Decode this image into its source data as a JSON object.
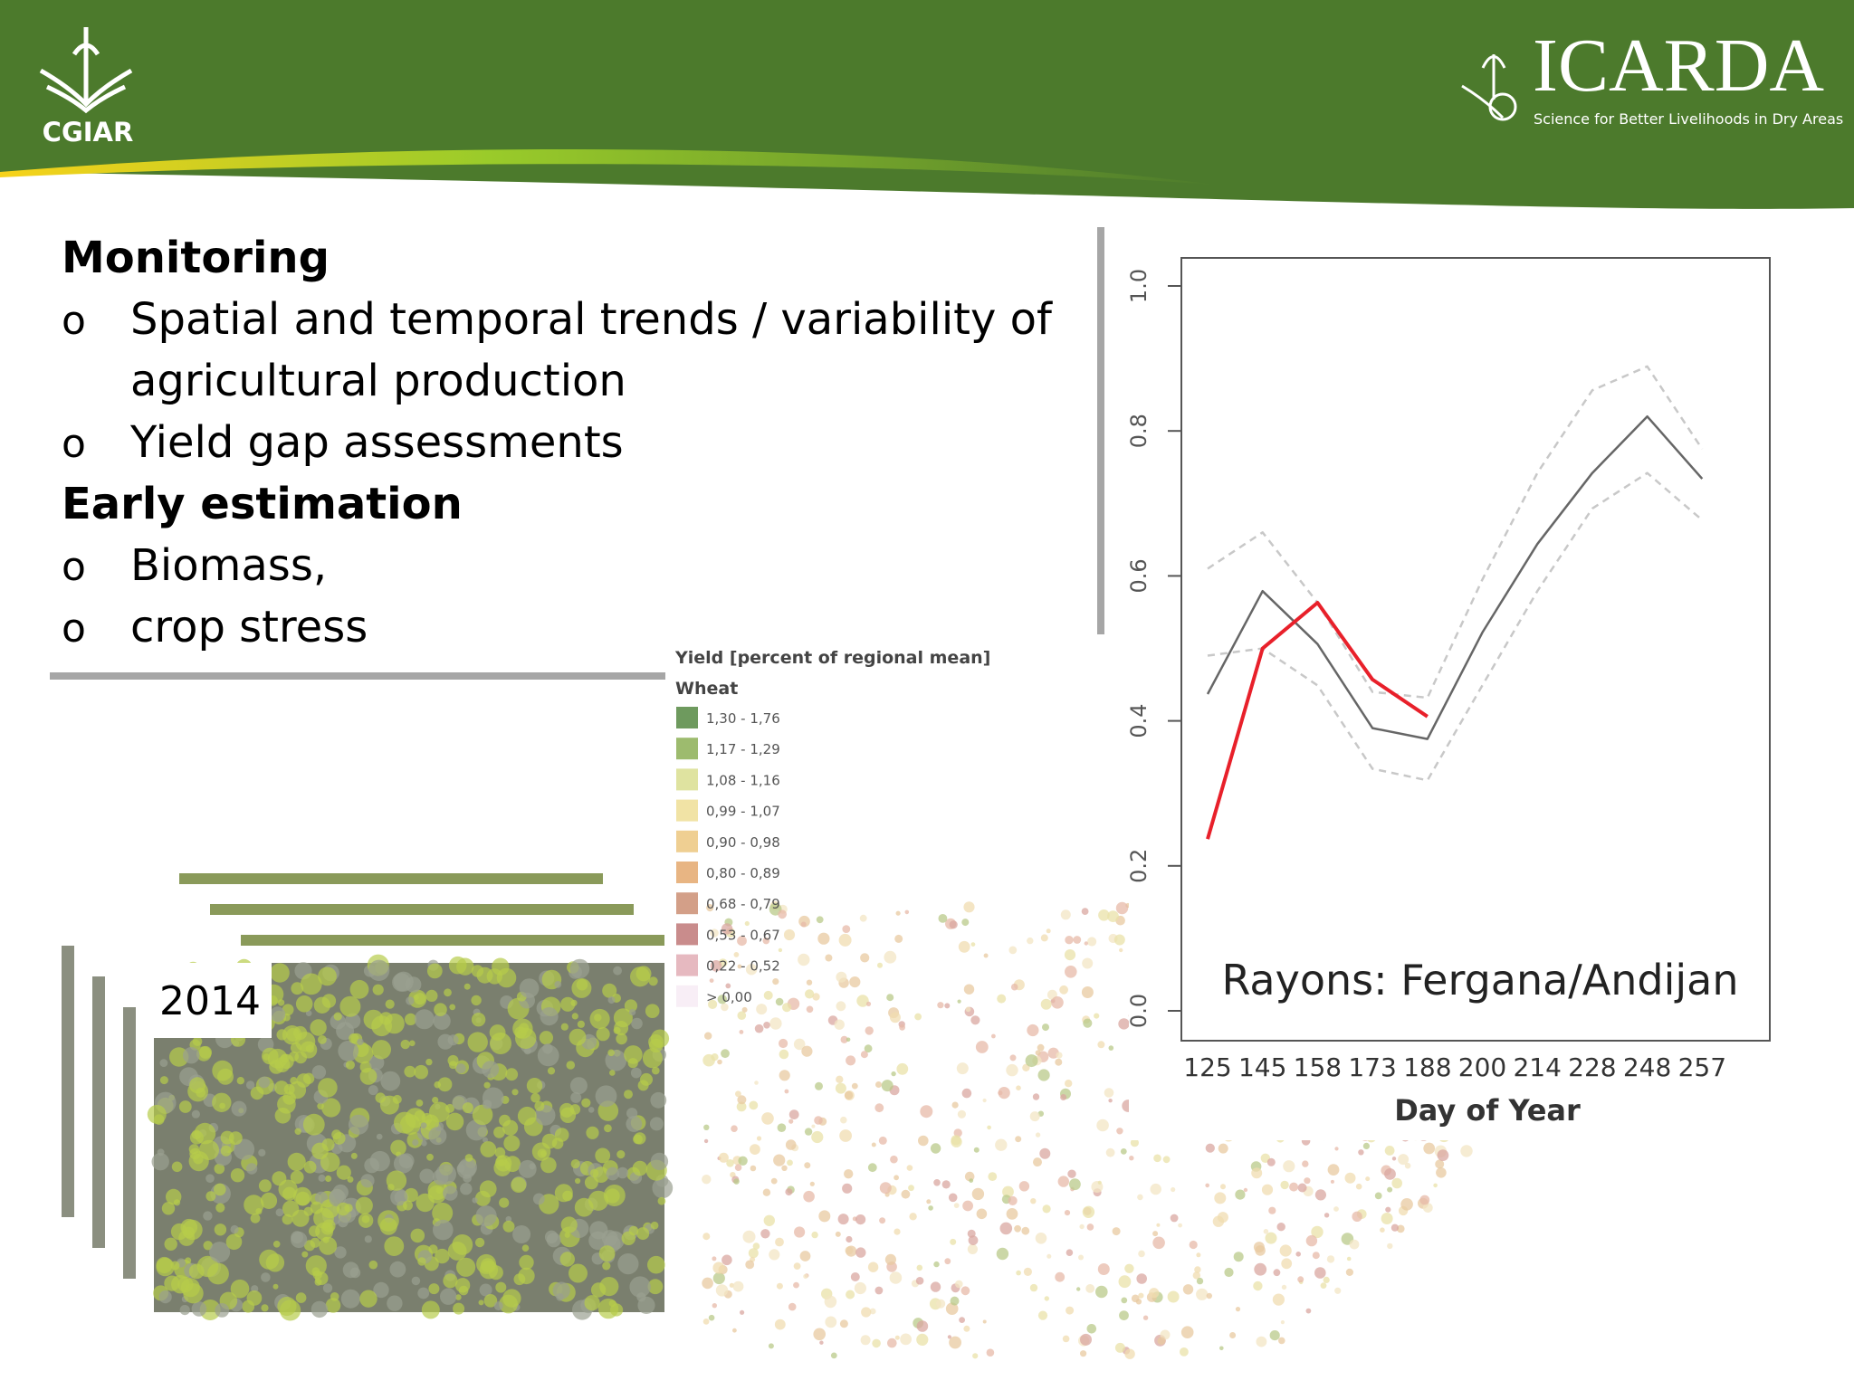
{
  "header": {
    "left_logo": "CGIAR",
    "right_logo": "ICARDA",
    "right_tagline": "Science for Better Livelihoods in Dry Areas"
  },
  "sections": [
    {
      "heading": "Monitoring",
      "items": [
        "Spatial and temporal trends / variability of",
        "agricultural production",
        "Yield gap assessments"
      ]
    },
    {
      "heading": "Early estimation",
      "items": [
        "Biomass,",
        "crop stress"
      ]
    }
  ],
  "bullet": "o",
  "map_legend": {
    "title": "Yield [percent of regional mean]",
    "subtitle": "Wheat",
    "entries": [
      {
        "label": "1,30 - 1,76",
        "color": "#6e9a5e"
      },
      {
        "label": "1,17 - 1,29",
        "color": "#9dbb6e"
      },
      {
        "label": "1,08 - 1,16",
        "color": "#dfe3a0"
      },
      {
        "label": "0,99 - 1,07",
        "color": "#f1e3a5"
      },
      {
        "label": "0,90 - 0,98",
        "color": "#efcf92"
      },
      {
        "label": "0,80 - 0,89",
        "color": "#e8b583"
      },
      {
        "label": "0,68 - 0,79",
        "color": "#d39f88"
      },
      {
        "label": "0,53 - 0,67",
        "color": "#c98c8c"
      },
      {
        "label": "0,22 - 0,52",
        "color": "#e6b9c0"
      },
      {
        "label": "> 0,00",
        "color": "#f8eef6"
      }
    ]
  },
  "image_label": "2014",
  "chart": {
    "type": "line",
    "annotation": "Rayons: Fergana/Andijan",
    "x_label": "Day of Year",
    "categories": [
      "125",
      "145",
      "158",
      "173",
      "188",
      "200",
      "214",
      "228",
      "248",
      "257"
    ],
    "ylim": [
      0,
      1
    ],
    "yticks": [
      {
        "value": 0,
        "label": "0.0"
      },
      0.2,
      0.4,
      0.6,
      0.8,
      {
        "value": 1,
        "label": "1.0"
      }
    ],
    "series": [
      {
        "color": "#c8c8c8",
        "dashed": true,
        "values": [
          0.61,
          0.66,
          0.563,
          0.44,
          0.432,
          0.595,
          0.742,
          0.856,
          0.889,
          0.775
        ]
      },
      {
        "color": "#c8c8c8",
        "dashed": true,
        "values": [
          0.49,
          0.5,
          0.449,
          0.334,
          0.318,
          0.449,
          0.579,
          0.693,
          0.742,
          0.677
        ]
      },
      {
        "color": "#666666",
        "dashed": false,
        "values": [
          0.437,
          0.579,
          0.506,
          0.39,
          0.375,
          0.522,
          0.644,
          0.742,
          0.82,
          0.734
        ]
      },
      {
        "color": "#e8202a",
        "dashed": false,
        "values": [
          0.237,
          0.5,
          0.563,
          0.457,
          0.406,
          null,
          null,
          null,
          null,
          null
        ]
      }
    ]
  }
}
